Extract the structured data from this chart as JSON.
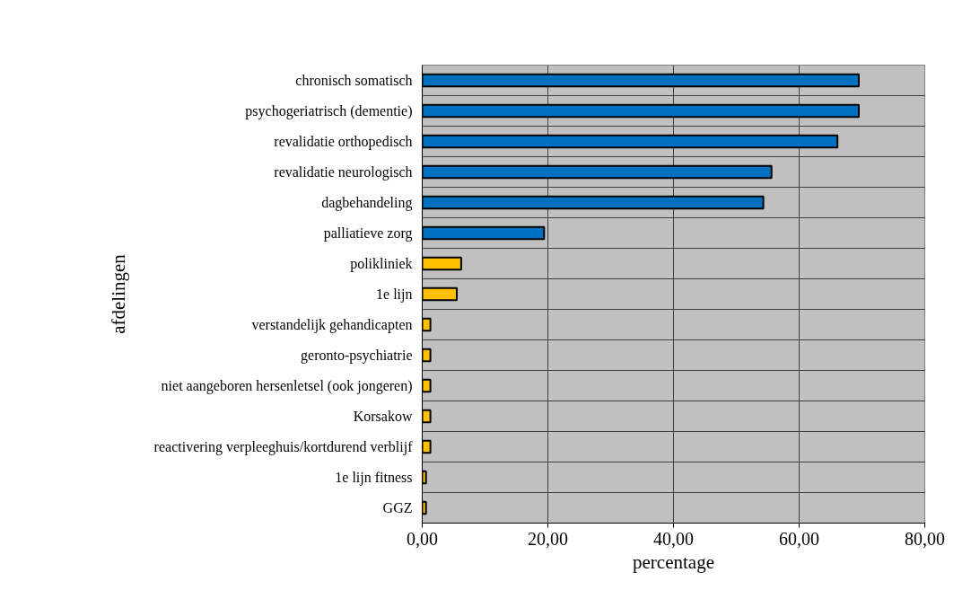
{
  "chart_data": {
    "type": "bar",
    "orientation": "horizontal",
    "xlabel": "percentage",
    "ylabel": "afdelingen",
    "categories": [
      "chronisch somatisch",
      "psychogeriatrisch (dementie)",
      "revalidatie orthopedisch",
      "revalidatie neurologisch",
      "dagbehandeling",
      "palliatieve zorg",
      "polikliniek",
      "1e lijn",
      "verstandelijk gehandicapten",
      "geronto-psychiatrie",
      "niet aangeboren hersenletsel (ook jongeren)",
      "Korsakow",
      "reactivering verpleeghuis/kortdurend verblijf",
      "1e lijn fitness",
      "GGZ"
    ],
    "values": [
      69.5,
      69.5,
      66.1,
      55.6,
      54.3,
      19.4,
      6.2,
      5.5,
      1.3,
      1.3,
      1.3,
      1.3,
      1.3,
      0.6,
      0.6
    ],
    "colors": [
      "#0070c0",
      "#0070c0",
      "#0070c0",
      "#0070c0",
      "#0070c0",
      "#0070c0",
      "#ffc000",
      "#ffc000",
      "#ffc000",
      "#ffc000",
      "#ffc000",
      "#ffc000",
      "#ffc000",
      "#ffc000",
      "#ffc000"
    ],
    "xlim": [
      0,
      80
    ],
    "xticks": [
      {
        "value": 0,
        "label": "0,00"
      },
      {
        "value": 20,
        "label": "20,00"
      },
      {
        "value": 40,
        "label": "40,00"
      },
      {
        "value": 60,
        "label": "60,00"
      },
      {
        "value": 80,
        "label": "80,00"
      }
    ],
    "grid": true
  }
}
